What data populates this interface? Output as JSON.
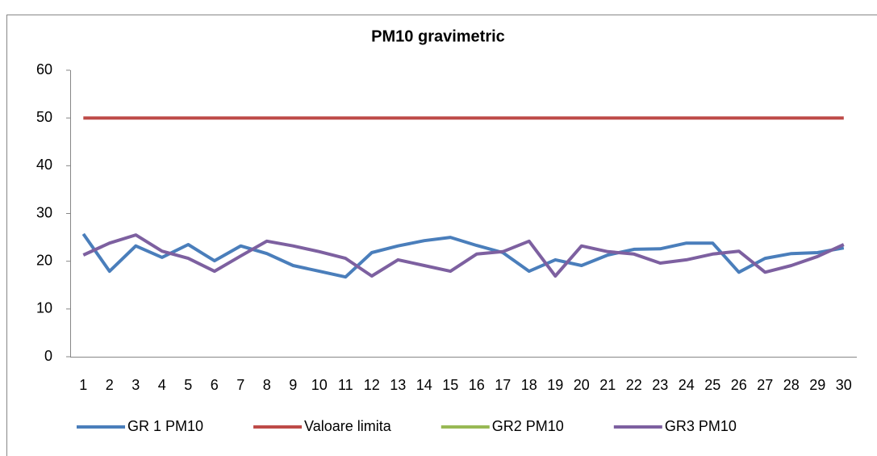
{
  "chart_data": {
    "type": "line",
    "title": "PM10 gravimetric",
    "categories": [
      "1",
      "2",
      "3",
      "4",
      "5",
      "6",
      "7",
      "8",
      "9",
      "10",
      "11",
      "12",
      "13",
      "14",
      "15",
      "16",
      "17",
      "18",
      "19",
      "20",
      "21",
      "22",
      "23",
      "24",
      "25",
      "26",
      "27",
      "28",
      "29",
      "30"
    ],
    "series": [
      {
        "name": "GR 1 PM10",
        "color": "#4a7ebb",
        "values": [
          25.7,
          17.9,
          23.2,
          20.8,
          23.5,
          20.1,
          23.2,
          21.6,
          19.1,
          17.9,
          16.7,
          21.8,
          23.2,
          24.3,
          25.0,
          23.3,
          21.8,
          17.9,
          20.3,
          19.1,
          21.3,
          22.5,
          22.6,
          23.8,
          23.8,
          17.7,
          20.6,
          21.6,
          21.8,
          22.8
        ]
      },
      {
        "name": "Valoare limita",
        "color": "#be4b48",
        "values": [
          50,
          50,
          50,
          50,
          50,
          50,
          50,
          50,
          50,
          50,
          50,
          50,
          50,
          50,
          50,
          50,
          50,
          50,
          50,
          50,
          50,
          50,
          50,
          50,
          50,
          50,
          50,
          50,
          50,
          50
        ]
      },
      {
        "name": "GR2 PM10",
        "color": "#98b954",
        "values": [
          null,
          null,
          null,
          null,
          null,
          null,
          null,
          null,
          null,
          null,
          null,
          null,
          null,
          null,
          null,
          null,
          null,
          null,
          null,
          null,
          null,
          null,
          null,
          null,
          null,
          null,
          null,
          null,
          null,
          null
        ]
      },
      {
        "name": "GR3 PM10",
        "color": "#7d60a0",
        "values": [
          21.3,
          23.8,
          25.5,
          22.1,
          20.6,
          17.9,
          21.1,
          24.2,
          23.2,
          22.0,
          20.6,
          16.9,
          20.3,
          19.1,
          17.9,
          21.5,
          22.0,
          24.2,
          16.9,
          23.2,
          22.0,
          21.5,
          19.6,
          20.3,
          21.5,
          22.1,
          17.7,
          19.1,
          21.0,
          23.5
        ]
      }
    ],
    "ylim": [
      0,
      60
    ],
    "yticks": [
      0,
      10,
      20,
      30,
      40,
      50,
      60
    ],
    "grid": false,
    "legend": "bottom"
  }
}
